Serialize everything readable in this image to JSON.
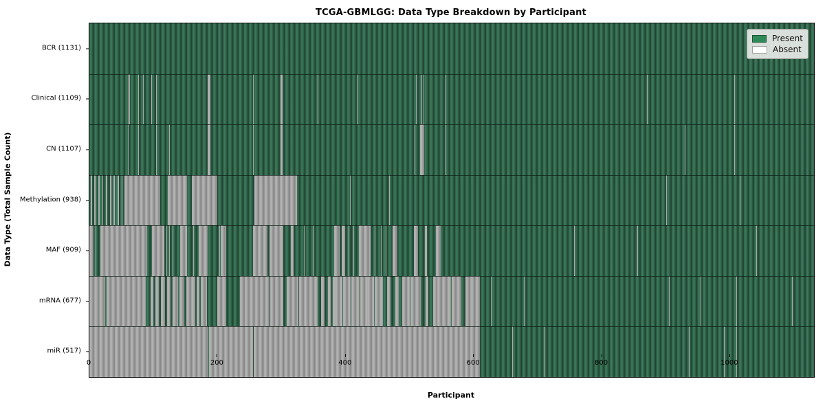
{
  "title": "TCGA-GBMLGG: Data Type Breakdown by Participant",
  "axes": {
    "x_label": "Participant",
    "y_label": "Data Type (Total Sample Count)",
    "x_ticks": [
      0,
      200,
      400,
      600,
      800,
      1000
    ]
  },
  "legend": {
    "items": [
      {
        "label": "Present",
        "color": "#2e8b57"
      },
      {
        "label": "Absent",
        "color": "#ffffff"
      }
    ]
  },
  "chart_data": {
    "type": "heatmap",
    "title": "TCGA-GBMLGG: Data Type Breakdown by Participant",
    "xlabel": "Participant",
    "ylabel": "Data Type (Total Sample Count)",
    "x_range": [
      0,
      1131
    ],
    "legend_position": "upper right",
    "colors": {
      "present": "#2e8b57",
      "absent": "#ffffff"
    },
    "rows": [
      {
        "label": "BCR (1131)",
        "name": "BCR",
        "present_count": 1131,
        "absent_ranges": []
      },
      {
        "label": "Clinical (1109)",
        "name": "Clinical",
        "present_count": 1109,
        "absent_ranges": [
          [
            60,
            61
          ],
          [
            62,
            63
          ],
          [
            76,
            77
          ],
          [
            84,
            85
          ],
          [
            97,
            98
          ],
          [
            104,
            105
          ],
          [
            185,
            189
          ],
          [
            255,
            256
          ],
          [
            298,
            301
          ],
          [
            356,
            357
          ],
          [
            417,
            418
          ],
          [
            510,
            511
          ],
          [
            518,
            519
          ],
          [
            521,
            522
          ],
          [
            556,
            557
          ],
          [
            870,
            871
          ],
          [
            1006,
            1007
          ]
        ]
      },
      {
        "label": "CN (1107)",
        "name": "CN",
        "present_count": 1107,
        "absent_ranges": [
          [
            60,
            61
          ],
          [
            76,
            77
          ],
          [
            104,
            105
          ],
          [
            124,
            125
          ],
          [
            185,
            189
          ],
          [
            255,
            256
          ],
          [
            298,
            301
          ],
          [
            508,
            509
          ],
          [
            516,
            523
          ],
          [
            556,
            557
          ],
          [
            929,
            930
          ],
          [
            1006,
            1007
          ]
        ]
      },
      {
        "label": "Methylation (938)",
        "name": "Methylation",
        "present_count": 938,
        "absent_ranges": [
          [
            2,
            4
          ],
          [
            8,
            10
          ],
          [
            14,
            16
          ],
          [
            20,
            22
          ],
          [
            26,
            28
          ],
          [
            32,
            34
          ],
          [
            38,
            40
          ],
          [
            44,
            46
          ],
          [
            50,
            52
          ],
          [
            55,
            110
          ],
          [
            122,
            152
          ],
          [
            160,
            200
          ],
          [
            258,
            324
          ],
          [
            407,
            408
          ],
          [
            468,
            469
          ],
          [
            900,
            901
          ],
          [
            1015,
            1016
          ]
        ]
      },
      {
        "label": "MAF (909)",
        "name": "MAF",
        "present_count": 909,
        "absent_ranges": [
          [
            0,
            6
          ],
          [
            10,
            11
          ],
          [
            17,
            90
          ],
          [
            98,
            117
          ],
          [
            120,
            121
          ],
          [
            125,
            126
          ],
          [
            130,
            131
          ],
          [
            142,
            152
          ],
          [
            162,
            163
          ],
          [
            171,
            185
          ],
          [
            203,
            204
          ],
          [
            205,
            214
          ],
          [
            255,
            278
          ],
          [
            281,
            303
          ],
          [
            314,
            319
          ],
          [
            335,
            336
          ],
          [
            350,
            351
          ],
          [
            382,
            391
          ],
          [
            394,
            399
          ],
          [
            405,
            406
          ],
          [
            412,
            413
          ],
          [
            421,
            439
          ],
          [
            445,
            446
          ],
          [
            455,
            456
          ],
          [
            462,
            463
          ],
          [
            473,
            481
          ],
          [
            507,
            513
          ],
          [
            524,
            527
          ],
          [
            541,
            548
          ],
          [
            756,
            757
          ],
          [
            855,
            856
          ],
          [
            1041,
            1042
          ]
        ]
      },
      {
        "label": "mRNA (677)",
        "name": "mRNA",
        "present_count": 677,
        "absent_ranges": [
          [
            0,
            25
          ],
          [
            27,
            88
          ],
          [
            95,
            100
          ],
          [
            103,
            108
          ],
          [
            112,
            118
          ],
          [
            121,
            127
          ],
          [
            130,
            138
          ],
          [
            141,
            148
          ],
          [
            151,
            165
          ],
          [
            167,
            172
          ],
          [
            174,
            183
          ],
          [
            200,
            214
          ],
          [
            235,
            242
          ],
          [
            243,
            281
          ],
          [
            282,
            303
          ],
          [
            308,
            326
          ],
          [
            327,
            356
          ],
          [
            362,
            367
          ],
          [
            372,
            377
          ],
          [
            380,
            383
          ],
          [
            383,
            395
          ],
          [
            396,
            408
          ],
          [
            409,
            422
          ],
          [
            423,
            433
          ],
          [
            434,
            444
          ],
          [
            445,
            458
          ],
          [
            465,
            470
          ],
          [
            478,
            483
          ],
          [
            488,
            500
          ],
          [
            501,
            517
          ],
          [
            525,
            529
          ],
          [
            537,
            543
          ],
          [
            543,
            564
          ],
          [
            566,
            580
          ],
          [
            587,
            609
          ],
          [
            627,
            628
          ],
          [
            678,
            679
          ],
          [
            905,
            906
          ],
          [
            954,
            955
          ],
          [
            1010,
            1011
          ],
          [
            1097,
            1098
          ]
        ]
      },
      {
        "label": "miR (517)",
        "name": "miR",
        "present_count": 517,
        "absent_ranges": [
          [
            0,
            186
          ],
          [
            187,
            255
          ],
          [
            256,
            609
          ],
          [
            660,
            661
          ],
          [
            710,
            711
          ],
          [
            936,
            937
          ],
          [
            990,
            991
          ],
          [
            1010,
            1011
          ]
        ]
      }
    ]
  }
}
